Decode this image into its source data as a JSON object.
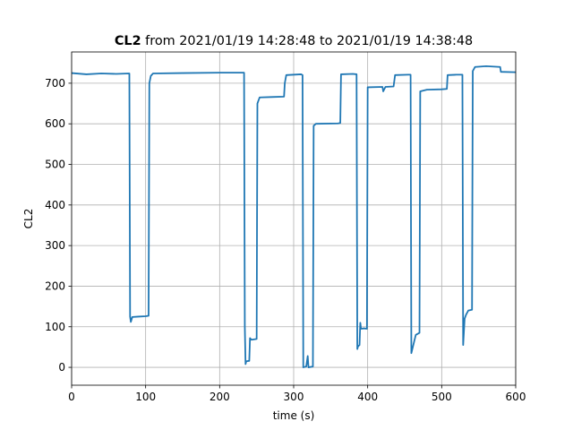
{
  "chart_data": {
    "type": "line",
    "title": {
      "bold": "CL2",
      "rest": "from 2021/01/19 14:28:48 to 2021/01/19 14:38:48"
    },
    "xlabel": "time (s)",
    "ylabel": "CL2",
    "x": [
      0,
      20,
      40,
      60,
      78,
      79,
      80,
      82,
      90,
      100,
      104,
      105,
      107,
      110,
      150,
      200,
      233,
      234,
      235,
      236,
      240,
      241,
      243,
      250,
      251,
      254,
      270,
      287,
      288,
      290,
      310,
      312,
      313,
      317,
      319,
      320,
      326,
      327,
      330,
      360,
      363,
      364,
      380,
      385,
      386,
      387,
      389,
      390,
      391,
      395,
      399,
      400,
      420,
      421,
      424,
      435,
      437,
      455,
      458,
      459,
      461,
      465,
      470,
      471,
      480,
      500,
      507,
      508,
      520,
      528,
      529,
      531,
      533,
      536,
      541,
      542,
      545,
      560,
      579,
      580,
      600
    ],
    "series": [
      {
        "name": "CL2",
        "color": "#1f77b4",
        "values": [
          725,
          722,
          724,
          723,
          724,
          125,
          112,
          124,
          125,
          126,
          127,
          700,
          718,
          724,
          725,
          726,
          726,
          100,
          8,
          15,
          16,
          72,
          68,
          70,
          650,
          665,
          666,
          667,
          700,
          720,
          722,
          720,
          0,
          2,
          28,
          0,
          2,
          595,
          600,
          601,
          602,
          722,
          723,
          722,
          45,
          52,
          55,
          110,
          95,
          96,
          95,
          690,
          691,
          680,
          691,
          692,
          720,
          721,
          721,
          35,
          50,
          80,
          85,
          680,
          684,
          685,
          686,
          720,
          721,
          721,
          55,
          120,
          130,
          140,
          142,
          730,
          740,
          742,
          740,
          728,
          727
        ]
      }
    ],
    "xlim": [
      0,
      600
    ],
    "ylim": [
      -44,
      777
    ],
    "xticks": [
      0,
      100,
      200,
      300,
      400,
      500,
      600
    ],
    "yticks": [
      0,
      100,
      200,
      300,
      400,
      500,
      600,
      700
    ],
    "grid": true
  }
}
